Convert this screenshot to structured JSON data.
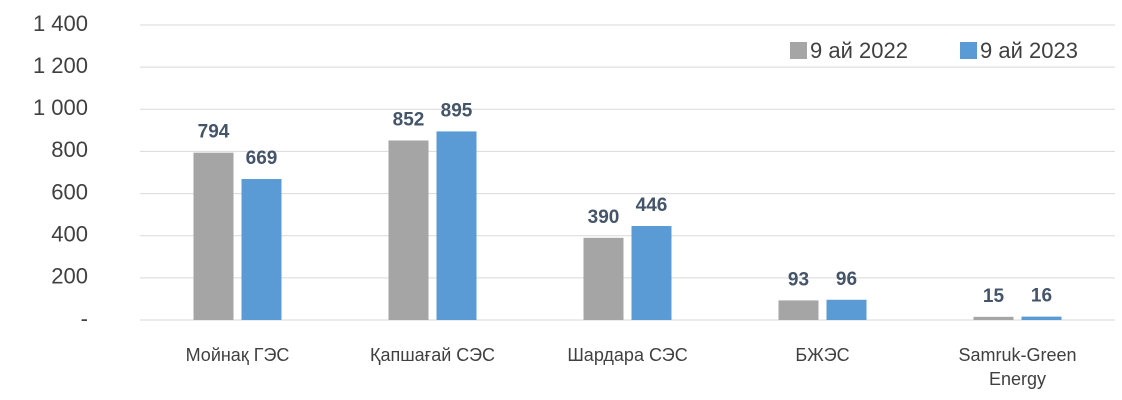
{
  "chart_data": {
    "type": "bar",
    "categories": [
      "Мойнақ ГЭС",
      "Қапшағай СЭС",
      "Шардара СЭС",
      "БЖЭС",
      "Samruk-Green Energy"
    ],
    "series": [
      {
        "name": "9 ай 2022",
        "color": "#a5a5a5",
        "values": [
          794,
          852,
          390,
          93,
          15
        ]
      },
      {
        "name": "9 ай 2023",
        "color": "#5b9bd5",
        "values": [
          669,
          895,
          446,
          96,
          16
        ]
      }
    ],
    "ylim": [
      0,
      1400
    ],
    "yticks": [
      {
        "value": 0,
        "label": "-"
      },
      200,
      400,
      600,
      800,
      {
        "value": 1000,
        "label": "1 000"
      },
      {
        "value": 1200,
        "label": "1 200"
      },
      {
        "value": 1400,
        "label": "1 400"
      }
    ],
    "grid": true,
    "legend": "upper right"
  }
}
